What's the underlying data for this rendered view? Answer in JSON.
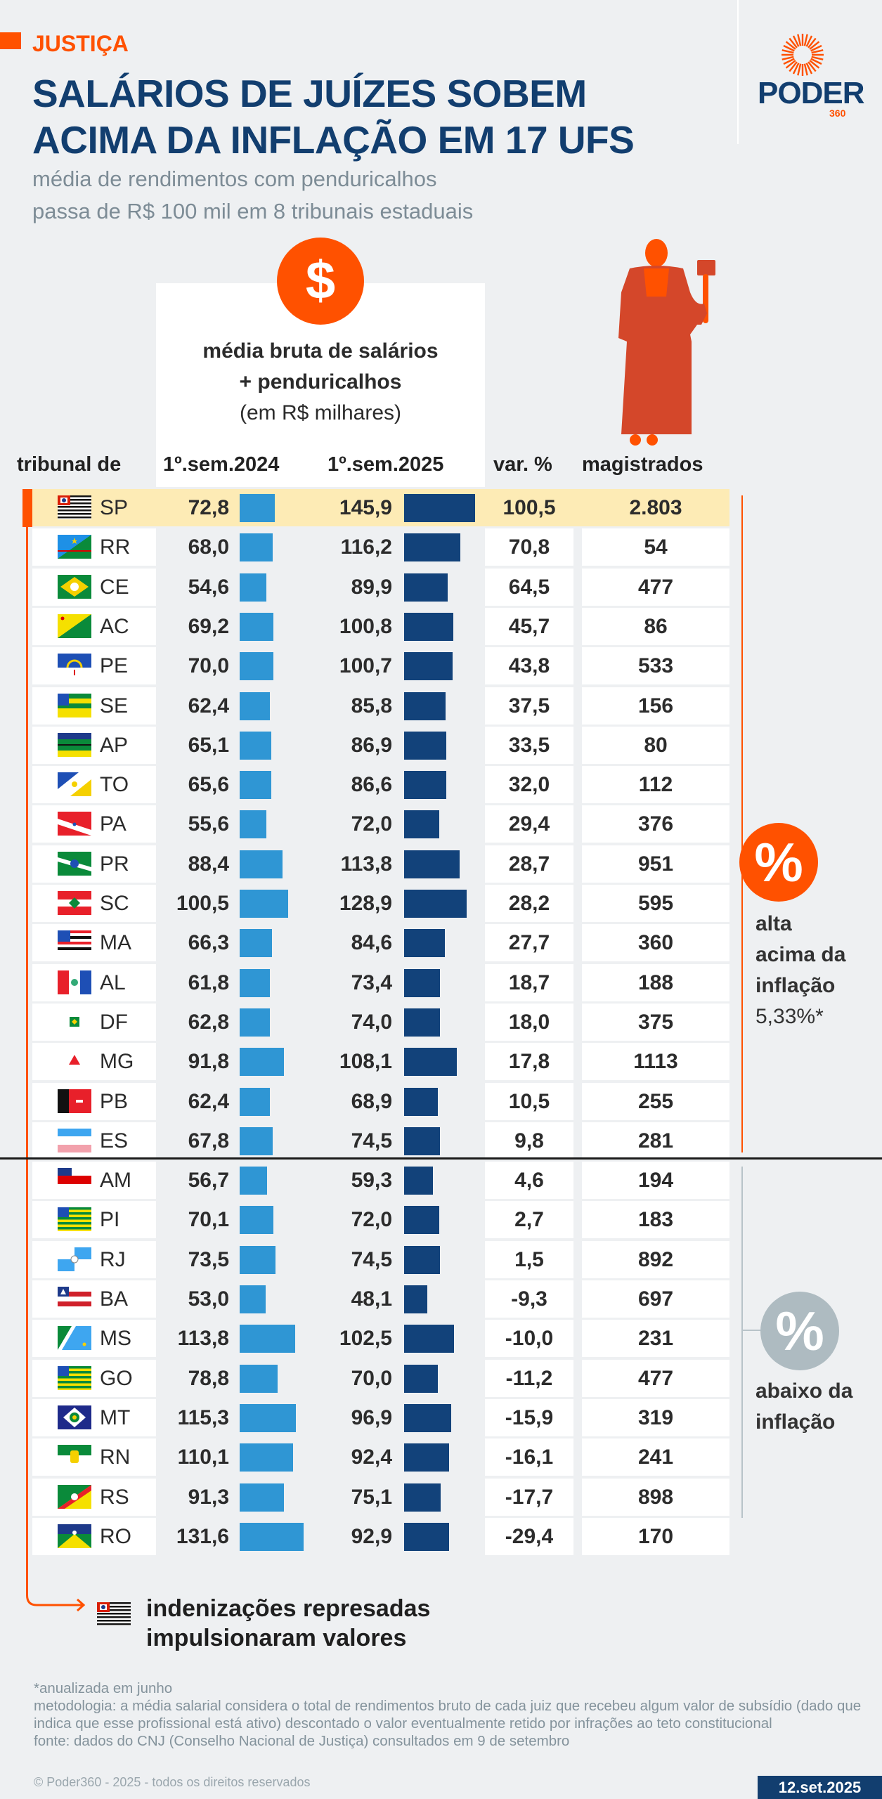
{
  "kicker": "JUSTIÇA",
  "title_lines": [
    "SALÁRIOS DE JUÍZES SOBEM",
    "ACIMA DA INFLAÇÃO EM 17 UFS"
  ],
  "subtitle_lines": [
    "média de rendimentos com penduricalhos",
    "passa de R$ 100 mil em 8 tribunais estaduais"
  ],
  "logo": {
    "name": "PODER",
    "suffix": "360"
  },
  "salary_box": {
    "icon": "dollar-icon",
    "symbol": "$",
    "lines": [
      "média bruta de salários",
      "+ penduricalhos",
      "(em R$ milhares)"
    ]
  },
  "columns": {
    "tribunal": "tribunal de",
    "y2024": "1º.sem.2024",
    "y2025": "1º.sem.2025",
    "var": "var. %",
    "magistrados": "magistrados"
  },
  "colors": {
    "accent": "#ff5100",
    "navy": "#123e6f",
    "bar2024": "#2f96d4",
    "bar2025": "#12427a",
    "highlight": "#fdebb5",
    "below": "#aebbc1"
  },
  "rows": [
    {
      "uf": "SP",
      "y2024": "72,8",
      "y2025": "145,9",
      "var": "100,5",
      "magistrados": "2.803",
      "v24": 72.8,
      "v25": 145.9,
      "highlight": true
    },
    {
      "uf": "RR",
      "y2024": "68,0",
      "y2025": "116,2",
      "var": "70,8",
      "magistrados": "54",
      "v24": 68.0,
      "v25": 116.2
    },
    {
      "uf": "CE",
      "y2024": "54,6",
      "y2025": "89,9",
      "var": "64,5",
      "magistrados": "477",
      "v24": 54.6,
      "v25": 89.9
    },
    {
      "uf": "AC",
      "y2024": "69,2",
      "y2025": "100,8",
      "var": "45,7",
      "magistrados": "86",
      "v24": 69.2,
      "v25": 100.8
    },
    {
      "uf": "PE",
      "y2024": "70,0",
      "y2025": "100,7",
      "var": "43,8",
      "magistrados": "533",
      "v24": 70.0,
      "v25": 100.7
    },
    {
      "uf": "SE",
      "y2024": "62,4",
      "y2025": "85,8",
      "var": "37,5",
      "magistrados": "156",
      "v24": 62.4,
      "v25": 85.8
    },
    {
      "uf": "AP",
      "y2024": "65,1",
      "y2025": "86,9",
      "var": "33,5",
      "magistrados": "80",
      "v24": 65.1,
      "v25": 86.9
    },
    {
      "uf": "TO",
      "y2024": "65,6",
      "y2025": "86,6",
      "var": "32,0",
      "magistrados": "112",
      "v24": 65.6,
      "v25": 86.6
    },
    {
      "uf": "PA",
      "y2024": "55,6",
      "y2025": "72,0",
      "var": "29,4",
      "magistrados": "376",
      "v24": 55.6,
      "v25": 72.0
    },
    {
      "uf": "PR",
      "y2024": "88,4",
      "y2025": "113,8",
      "var": "28,7",
      "magistrados": "951",
      "v24": 88.4,
      "v25": 113.8
    },
    {
      "uf": "SC",
      "y2024": "100,5",
      "y2025": "128,9",
      "var": "28,2",
      "magistrados": "595",
      "v24": 100.5,
      "v25": 128.9
    },
    {
      "uf": "MA",
      "y2024": "66,3",
      "y2025": "84,6",
      "var": "27,7",
      "magistrados": "360",
      "v24": 66.3,
      "v25": 84.6
    },
    {
      "uf": "AL",
      "y2024": "61,8",
      "y2025": "73,4",
      "var": "18,7",
      "magistrados": "188",
      "v24": 61.8,
      "v25": 73.4
    },
    {
      "uf": "DF",
      "y2024": "62,8",
      "y2025": "74,0",
      "var": "18,0",
      "magistrados": "375",
      "v24": 62.8,
      "v25": 74.0
    },
    {
      "uf": "MG",
      "y2024": "91,8",
      "y2025": "108,1",
      "var": "17,8",
      "magistrados": "1113",
      "v24": 91.8,
      "v25": 108.1
    },
    {
      "uf": "PB",
      "y2024": "62,4",
      "y2025": "68,9",
      "var": "10,5",
      "magistrados": "255",
      "v24": 62.4,
      "v25": 68.9
    },
    {
      "uf": "ES",
      "y2024": "67,8",
      "y2025": "74,5",
      "var": "9,8",
      "magistrados": "281",
      "v24": 67.8,
      "v25": 74.5
    },
    {
      "uf": "AM",
      "y2024": "56,7",
      "y2025": "59,3",
      "var": "4,6",
      "magistrados": "194",
      "v24": 56.7,
      "v25": 59.3
    },
    {
      "uf": "PI",
      "y2024": "70,1",
      "y2025": "72,0",
      "var": "2,7",
      "magistrados": "183",
      "v24": 70.1,
      "v25": 72.0
    },
    {
      "uf": "RJ",
      "y2024": "73,5",
      "y2025": "74,5",
      "var": "1,5",
      "magistrados": "892",
      "v24": 73.5,
      "v25": 74.5
    },
    {
      "uf": "BA",
      "y2024": "53,0",
      "y2025": "48,1",
      "var": "-9,3",
      "magistrados": "697",
      "v24": 53.0,
      "v25": 48.1
    },
    {
      "uf": "MS",
      "y2024": "113,8",
      "y2025": "102,5",
      "var": "-10,0",
      "magistrados": "231",
      "v24": 113.8,
      "v25": 102.5
    },
    {
      "uf": "GO",
      "y2024": "78,8",
      "y2025": "70,0",
      "var": "-11,2",
      "magistrados": "477",
      "v24": 78.8,
      "v25": 70.0
    },
    {
      "uf": "MT",
      "y2024": "115,3",
      "y2025": "96,9",
      "var": "-15,9",
      "magistrados": "319",
      "v24": 115.3,
      "v25": 96.9
    },
    {
      "uf": "RN",
      "y2024": "110,1",
      "y2025": "92,4",
      "var": "-16,1",
      "magistrados": "241",
      "v24": 110.1,
      "v25": 92.4
    },
    {
      "uf": "RS",
      "y2024": "91,3",
      "y2025": "75,1",
      "var": "-17,7",
      "magistrados": "898",
      "v24": 91.3,
      "v25": 75.1
    },
    {
      "uf": "RO",
      "y2024": "131,6",
      "y2025": "92,9",
      "var": "-29,4",
      "magistrados": "170",
      "v24": 131.6,
      "v25": 92.9
    }
  ],
  "above": {
    "symbol": "%",
    "lines": [
      "alta",
      "acima da",
      "inflação"
    ],
    "rate": "5,33%*"
  },
  "below": {
    "symbol": "%",
    "lines": [
      "abaixo da",
      "inflação"
    ]
  },
  "note_lines": [
    "indenizações represadas",
    "impulsionaram valores"
  ],
  "footnotes": [
    "*anualizada em junho",
    "metodologia: a média salarial considera o total de rendimentos bruto de cada juiz que recebeu algum valor de subsídio (dado que indica que esse profissional está ativo) descontado o valor eventualmente retido por infrações ao teto constitucional",
    "fonte: dados do CNJ (Conselho Nacional de Justiça) consultados em 9 de setembro"
  ],
  "copyright": "© Poder360 - 2025 - todos os direitos reservados",
  "date": "12.set.2025"
}
